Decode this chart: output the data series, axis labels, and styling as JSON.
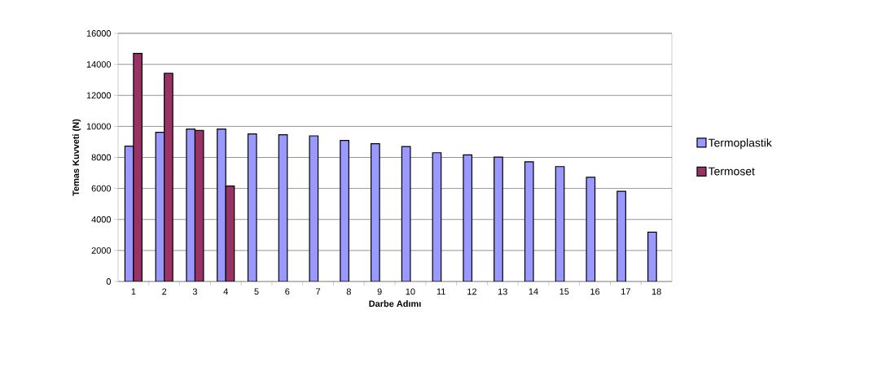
{
  "chart_data": {
    "type": "bar",
    "xlabel": "Darbe Adımı",
    "ylabel": "Temas Kuvveti (N)",
    "categories": [
      "1",
      "2",
      "3",
      "4",
      "5",
      "6",
      "7",
      "8",
      "9",
      "10",
      "11",
      "12",
      "13",
      "14",
      "15",
      "16",
      "17",
      "18"
    ],
    "series": [
      {
        "name": "Termoplastik",
        "color": "#9999ff",
        "values": [
          8730,
          9620,
          9830,
          9830,
          9510,
          9460,
          9390,
          9090,
          8880,
          8700,
          8300,
          8160,
          8020,
          7720,
          7410,
          6720,
          5820,
          3180
        ]
      },
      {
        "name": "Termoset",
        "color": "#993366",
        "values": [
          14710,
          13420,
          9740,
          6160,
          null,
          null,
          null,
          null,
          null,
          null,
          null,
          null,
          null,
          null,
          null,
          null,
          null,
          null
        ]
      }
    ],
    "ylim": [
      0,
      16000
    ],
    "yticks": [
      0,
      2000,
      4000,
      6000,
      8000,
      10000,
      12000,
      14000,
      16000
    ],
    "grid": "y",
    "legend": "right"
  }
}
